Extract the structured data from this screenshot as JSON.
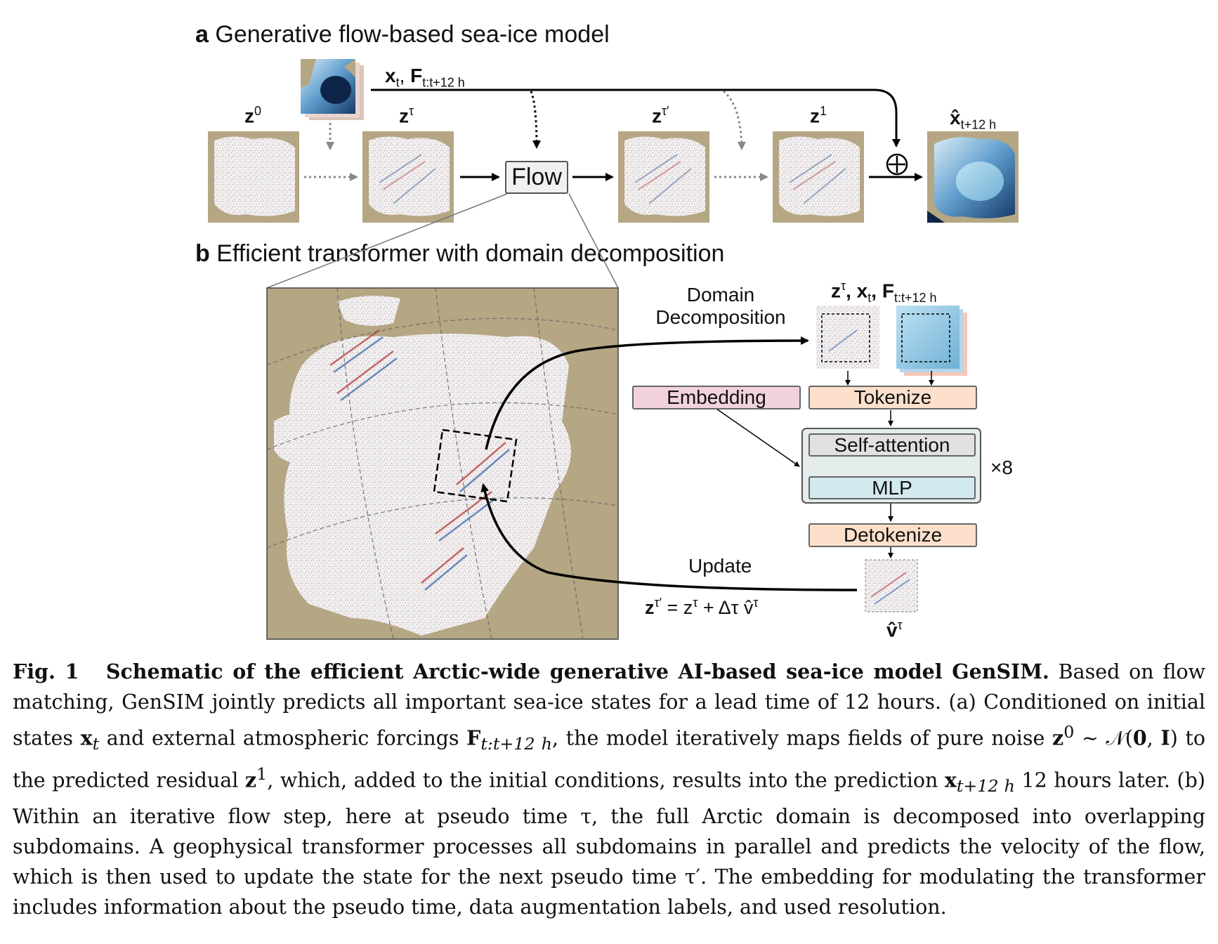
{
  "panel_a": {
    "letter": "a",
    "title": "Generative flow-based sea-ice model",
    "inputs_label": "x",
    "inputs_label_sub": "t",
    "inputs_label_F": "F",
    "inputs_label_F_sub": "t:t+12 h",
    "z0": "z",
    "z0_sup": "0",
    "ztau": "z",
    "ztau_sup": "τ",
    "ztau_prime": "z",
    "ztau_prime_sup": "τ′",
    "z1": "z",
    "z1_sup": "1",
    "xhat": "x̂",
    "xhat_sub": "t+12 h",
    "flow_label": "Flow",
    "plus_symbol": "⊕"
  },
  "panel_b": {
    "letter": "b",
    "title": "Efficient transformer with domain decomposition",
    "domain_decomp_line1": "Domain",
    "domain_decomp_line2": "Decomposition",
    "inputs_header": "z",
    "inputs_header_sup": "τ",
    "inputs_header_x": ", x",
    "inputs_header_x_sub": "t",
    "inputs_header_F": ", F",
    "inputs_header_F_sub": "t:t+12 h",
    "embedding": "Embedding",
    "tokenize": "Tokenize",
    "self_attention": "Self-attention",
    "mlp": "MLP",
    "repeat": "×8",
    "detokenize": "Detokenize",
    "update": "Update",
    "update_eq_lhs": "z",
    "update_eq_lhs_sup": "τ′",
    "update_eq_rhs": " = z",
    "update_eq_rhs_sup": "τ",
    "update_eq_tail": " + Δτ v̂",
    "update_eq_tail_sup": "τ",
    "vhat": "v̂",
    "vhat_sup": "τ"
  },
  "caption": {
    "fig_label": "Fig. 1",
    "title": "Schematic of the efficient Arctic-wide generative AI-based sea-ice model GenSIM.",
    "s1": "Based on flow matching, GenSIM jointly predicts all important sea-ice states for a lead time of 12 hours. (a) Conditioned on initial states ",
    "xt": "x",
    "xt_sub": "t",
    "s2": " and external atmospheric forcings ",
    "F": "F",
    "F_sub": "t:t+12 h",
    "s3": ", the model iteratively maps fields of pure noise ",
    "z0": "z",
    "z0_sup": "0",
    "s4": " ∼ 𝒩(",
    "zero": "0",
    "s5": ", ",
    "I": "I",
    "s6": ") to the predicted residual ",
    "z1": "z",
    "z1_sup": "1",
    "s7": ", which, added to the initial conditions, results into the prediction ",
    "xp": "x",
    "xp_sub": "t+12 h",
    "s8": " 12 hours later. (b) Within an iterative flow step, here at pseudo time τ, the full Arctic domain is decomposed into overlapping subdomains. A geophysical transformer processes all subdomains in parallel and predicts the velocity of the flow, which is then used to update the state for the next pseudo time τ′. The embedding for modulating the transformer includes information about the pseudo time, data augmentation labels, and used resolution."
  },
  "colors": {
    "land": "#b5a684",
    "embedding_fill": "#f2d3dc",
    "tokenize_fill": "#fde0cc",
    "self_attention_fill": "#e2e0e0",
    "mlp_fill": "#d3e9f0",
    "transformer_block_fill": "#e4ecec",
    "ice_deep": "#0e2448",
    "ice_light": "#a8d4ec"
  }
}
